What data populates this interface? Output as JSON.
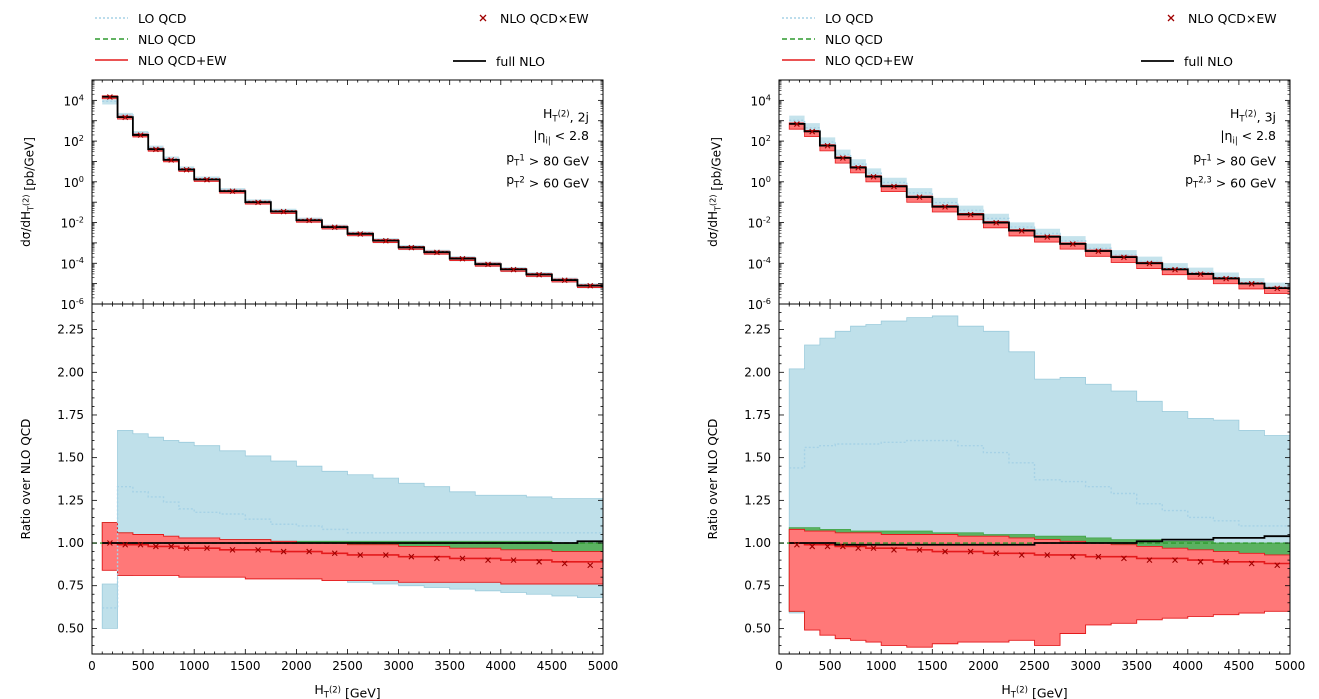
{
  "legend": [
    {
      "key": "lo",
      "label": "LO QCD",
      "color": "#a6d2e6",
      "style": "dotted"
    },
    {
      "key": "nlo",
      "label": "NLO QCD",
      "color": "#2e9a2e",
      "style": "dashed"
    },
    {
      "key": "nloew",
      "label": "NLO QCD+EW",
      "color": "#e41a1c",
      "style": "solid"
    },
    {
      "key": "cross",
      "label": "NLO QCD×EW",
      "color": "#a00000",
      "style": "marker-x"
    },
    {
      "key": "full",
      "label": "full NLO",
      "color": "#000000",
      "style": "solid"
    }
  ],
  "colors": {
    "lo_band": "#bfe0ea",
    "nlo_band": "#4aaa4a",
    "ew_band": "#ff7878",
    "ew_line": "#e41a1c",
    "lo_line": "#a6d2e6",
    "nlo_line": "#2e9a2e",
    "full_line": "#000000",
    "cross": "#a00000"
  },
  "axes": {
    "xlabel": "H_T^(2) [GeV]",
    "ylabel_top": "dσ/dH_T^(2) [pb/GeV]",
    "ylabel_bottom": "Ratio over NLO QCD",
    "xticks": [
      "0",
      "500",
      "1000",
      "1500",
      "2000",
      "2500",
      "3000",
      "3500",
      "4000",
      "4500",
      "5000"
    ],
    "yticks_top": [
      "10^4",
      "10^2",
      "10^0",
      "10^-2",
      "10^-4",
      "10^-6"
    ],
    "yticks_bottom": [
      "2.25",
      "2.00",
      "1.75",
      "1.50",
      "1.25",
      "1.00",
      "0.75",
      "0.50"
    ],
    "xlim": [
      0,
      5000
    ],
    "ylim_top": [
      1e-06,
      100000.0
    ],
    "ylim_bottom": [
      0.35,
      2.4
    ],
    "ytop_scale": "log"
  },
  "chart_data": [
    {
      "type": "line",
      "panel": "left",
      "annotation": [
        "H_T^(2), 2j",
        "|η_i| < 2.8",
        "p_T^1 > 80 GeV",
        "p_T^2 > 60 GeV"
      ],
      "bin_edges": [
        100,
        250,
        400,
        550,
        700,
        850,
        1000,
        1250,
        1500,
        1750,
        2000,
        2250,
        2500,
        2750,
        3000,
        3250,
        3500,
        3750,
        4000,
        4250,
        4500,
        4750,
        5000
      ],
      "top": {
        "full_nlo": [
          15000,
          1500,
          200,
          40,
          12,
          4,
          1.3,
          0.35,
          0.1,
          0.035,
          0.013,
          0.006,
          0.0028,
          0.0013,
          0.0006,
          0.00035,
          0.00017,
          9e-05,
          5e-05,
          2.8e-05,
          1.5e-05,
          8e-06
        ],
        "lo_factor": [
          0.6,
          1.3,
          1.25,
          1.2,
          1.17,
          1.15,
          1.13,
          1.12,
          1.1,
          1.08,
          1.07,
          1.06,
          1.05,
          1.05,
          1.05,
          1.05,
          1.05,
          1.05,
          1.05,
          1.05,
          1.05,
          1.05
        ]
      },
      "ratio": {
        "lo_center": [
          0.62,
          1.33,
          1.3,
          1.27,
          1.24,
          1.2,
          1.18,
          1.17,
          1.14,
          1.11,
          1.1,
          1.08,
          1.06,
          1.06,
          1.06,
          1.06,
          1.06,
          1.06,
          1.06,
          1.06,
          1.06,
          1.06
        ],
        "lo_low": [
          0.5,
          0.81,
          0.82,
          0.83,
          0.83,
          0.82,
          0.82,
          0.81,
          0.81,
          0.8,
          0.79,
          0.78,
          0.77,
          0.76,
          0.75,
          0.74,
          0.73,
          0.72,
          0.71,
          0.7,
          0.69,
          0.68
        ],
        "lo_high": [
          0.76,
          1.66,
          1.64,
          1.62,
          1.6,
          1.59,
          1.57,
          1.54,
          1.51,
          1.48,
          1.45,
          1.42,
          1.4,
          1.38,
          1.35,
          1.33,
          1.3,
          1.28,
          1.28,
          1.27,
          1.26,
          1.26
        ],
        "nlo_low": [
          0.98,
          0.82,
          0.84,
          0.85,
          0.85,
          0.86,
          0.86,
          0.87,
          0.88,
          0.9,
          0.91,
          0.92,
          0.93,
          0.93,
          0.93,
          0.94,
          0.94,
          0.94,
          0.94,
          0.94,
          0.95,
          0.95
        ],
        "nlo_high": [
          1.12,
          1.06,
          1.05,
          1.04,
          1.03,
          1.02,
          1.02,
          1.02,
          1.02,
          1.01,
          1.01,
          1.01,
          1.01,
          1.01,
          1.01,
          1.01,
          1.01,
          1.01,
          1.01,
          1.01,
          1.0,
          1.0
        ],
        "ew_center": [
          1.0,
          0.99,
          0.99,
          0.98,
          0.98,
          0.97,
          0.97,
          0.96,
          0.96,
          0.95,
          0.95,
          0.94,
          0.93,
          0.93,
          0.92,
          0.92,
          0.91,
          0.91,
          0.9,
          0.9,
          0.89,
          0.89
        ],
        "ew_low": [
          0.84,
          0.81,
          0.81,
          0.81,
          0.81,
          0.8,
          0.8,
          0.8,
          0.79,
          0.79,
          0.79,
          0.78,
          0.78,
          0.78,
          0.77,
          0.77,
          0.77,
          0.77,
          0.76,
          0.76,
          0.76,
          0.76
        ],
        "ew_high": [
          1.12,
          1.06,
          1.05,
          1.05,
          1.04,
          1.03,
          1.03,
          1.02,
          1.02,
          1.01,
          1.0,
          1.0,
          0.99,
          0.99,
          0.98,
          0.98,
          0.97,
          0.97,
          0.96,
          0.96,
          0.95,
          0.95
        ],
        "cross": [
          1.0,
          0.99,
          0.99,
          0.98,
          0.98,
          0.97,
          0.97,
          0.96,
          0.96,
          0.95,
          0.95,
          0.94,
          0.93,
          0.93,
          0.92,
          0.91,
          0.91,
          0.9,
          0.9,
          0.89,
          0.88,
          0.87
        ],
        "full": [
          1.0,
          1.0,
          1.0,
          1.0,
          1.0,
          1.0,
          1.0,
          1.0,
          1.0,
          1.0,
          1.0,
          1.0,
          1.0,
          1.0,
          1.0,
          1.0,
          1.0,
          1.0,
          1.0,
          1.0,
          1.0,
          1.01
        ]
      }
    },
    {
      "type": "line",
      "panel": "right",
      "annotation": [
        "H_T^(2), 3j",
        "|η_i| < 2.8",
        "p_T^1 > 80 GeV",
        "p_T^{2,3} > 60 GeV"
      ],
      "bin_edges": [
        100,
        250,
        400,
        550,
        700,
        850,
        1000,
        1250,
        1500,
        1750,
        2000,
        2250,
        2500,
        2750,
        3000,
        3250,
        3500,
        3750,
        4000,
        4250,
        4500,
        4750,
        5000
      ],
      "top": {
        "full_nlo": [
          700,
          300,
          60,
          15,
          5,
          1.8,
          0.6,
          0.18,
          0.06,
          0.025,
          0.01,
          0.004,
          0.002,
          0.0009,
          0.0004,
          0.0002,
          0.0001,
          5e-05,
          3e-05,
          1.8e-05,
          1e-05,
          6e-06
        ],
        "lo_factor": [
          1.5,
          1.5,
          1.5,
          1.5,
          1.5,
          1.5,
          1.55,
          1.6,
          1.6,
          1.6,
          1.6,
          1.5,
          1.45,
          1.4,
          1.35,
          1.3,
          1.25,
          1.2,
          1.2,
          1.15,
          1.1,
          1.1
        ]
      },
      "ratio": {
        "lo_center": [
          1.44,
          1.56,
          1.57,
          1.58,
          1.58,
          1.58,
          1.59,
          1.6,
          1.6,
          1.57,
          1.53,
          1.47,
          1.37,
          1.36,
          1.33,
          1.29,
          1.23,
          1.19,
          1.15,
          1.13,
          1.1,
          1.1
        ],
        "lo_low": [
          0.59,
          0.98,
          0.97,
          0.96,
          0.96,
          0.95,
          0.95,
          0.95,
          0.95,
          0.93,
          0.91,
          0.89,
          0.88,
          0.87,
          0.86,
          0.85,
          0.84,
          0.83,
          0.82,
          0.8,
          0.77,
          0.76
        ],
        "lo_high": [
          2.02,
          2.16,
          2.2,
          2.24,
          2.27,
          2.28,
          2.3,
          2.32,
          2.33,
          2.27,
          2.24,
          2.12,
          1.96,
          1.97,
          1.93,
          1.89,
          1.83,
          1.77,
          1.73,
          1.72,
          1.66,
          1.63
        ],
        "nlo_low": [
          0.6,
          0.5,
          0.48,
          0.47,
          0.46,
          0.46,
          0.45,
          0.45,
          0.45,
          0.46,
          0.47,
          0.49,
          0.52,
          0.56,
          0.6,
          0.65,
          0.7,
          0.74,
          0.78,
          0.82,
          0.85,
          0.87
        ],
        "nlo_high": [
          1.09,
          1.09,
          1.08,
          1.08,
          1.07,
          1.07,
          1.07,
          1.07,
          1.06,
          1.06,
          1.05,
          1.05,
          1.04,
          1.04,
          1.03,
          1.02,
          1.02,
          1.01,
          1.01,
          1.0,
          1.0,
          1.0
        ],
        "ew_center": [
          1.0,
          0.99,
          0.99,
          0.98,
          0.98,
          0.97,
          0.97,
          0.96,
          0.95,
          0.95,
          0.94,
          0.94,
          0.93,
          0.93,
          0.92,
          0.92,
          0.91,
          0.91,
          0.9,
          0.89,
          0.89,
          0.88
        ],
        "ew_low": [
          0.6,
          0.49,
          0.46,
          0.44,
          0.43,
          0.42,
          0.4,
          0.39,
          0.41,
          0.42,
          0.42,
          0.43,
          0.4,
          0.47,
          0.52,
          0.53,
          0.55,
          0.56,
          0.57,
          0.58,
          0.59,
          0.6
        ],
        "ew_high": [
          1.08,
          1.07,
          1.07,
          1.06,
          1.06,
          1.06,
          1.05,
          1.05,
          1.05,
          1.04,
          1.04,
          1.03,
          1.02,
          1.01,
          1.0,
          0.99,
          0.98,
          0.97,
          0.96,
          0.95,
          0.94,
          0.93
        ],
        "cross": [
          0.99,
          0.98,
          0.98,
          0.98,
          0.97,
          0.97,
          0.96,
          0.96,
          0.95,
          0.95,
          0.94,
          0.93,
          0.93,
          0.92,
          0.92,
          0.91,
          0.9,
          0.9,
          0.89,
          0.89,
          0.88,
          0.87
        ],
        "full": [
          1.0,
          1.0,
          1.0,
          0.99,
          0.99,
          0.99,
          0.99,
          0.99,
          0.99,
          0.99,
          0.99,
          0.99,
          1.0,
          1.0,
          1.0,
          1.0,
          1.01,
          1.02,
          1.02,
          1.03,
          1.03,
          1.04
        ]
      }
    }
  ]
}
